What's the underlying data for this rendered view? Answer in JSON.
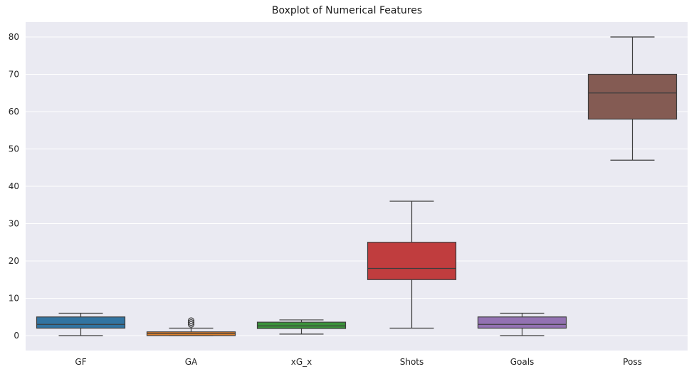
{
  "chart_data": {
    "type": "box",
    "title": "Boxplot of Numerical Features",
    "xlabel": "",
    "ylabel": "",
    "ylim": [
      -4,
      84
    ],
    "yticks": [
      0,
      10,
      20,
      30,
      40,
      50,
      60,
      70,
      80
    ],
    "grid": true,
    "categories": [
      "GF",
      "GA",
      "xG_x",
      "Shots",
      "Goals",
      "Poss"
    ],
    "boxes": [
      {
        "category": "GF",
        "color": "#3274a1",
        "whisker_low": 0,
        "q1": 2,
        "median": 3,
        "q3": 5,
        "whisker_high": 6,
        "outliers": []
      },
      {
        "category": "GA",
        "color": "#e1812c",
        "whisker_low": 0,
        "q1": 0,
        "median": 0.5,
        "q3": 1,
        "whisker_high": 2,
        "outliers": [
          3,
          3.5,
          4
        ]
      },
      {
        "category": "xG_x",
        "color": "#3a923a",
        "whisker_low": 0.4,
        "q1": 1.9,
        "median": 2.6,
        "q3": 3.6,
        "whisker_high": 4.2,
        "outliers": []
      },
      {
        "category": "Shots",
        "color": "#c03d3e",
        "whisker_low": 2,
        "q1": 15,
        "median": 18,
        "q3": 25,
        "whisker_high": 36,
        "outliers": []
      },
      {
        "category": "Goals",
        "color": "#9372b2",
        "whisker_low": 0,
        "q1": 2,
        "median": 3,
        "q3": 5,
        "whisker_high": 6,
        "outliers": []
      },
      {
        "category": "Poss",
        "color": "#845b53",
        "whisker_low": 47,
        "q1": 58,
        "median": 65,
        "q3": 70,
        "whisker_high": 80,
        "outliers": []
      }
    ]
  }
}
